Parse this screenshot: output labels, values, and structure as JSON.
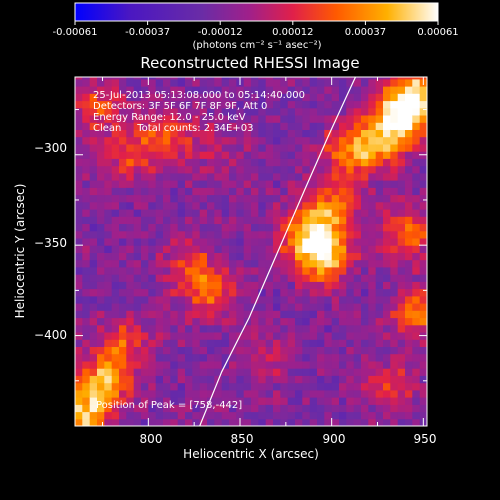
{
  "chart_data": {
    "type": "heatmap",
    "title": "Reconstructed RHESSI Image",
    "xlabel": "Heliocentric X (arcsec)",
    "ylabel": "Heliocentric Y (arcsec)",
    "xlim": [
      760,
      952
    ],
    "ylim": [
      -450,
      -257
    ],
    "x_ticks": [
      800,
      850,
      900,
      950
    ],
    "y_ticks": [
      -300,
      -350,
      -400
    ],
    "x_tick_labels": [
      "800",
      "850",
      "900",
      "950"
    ],
    "y_tick_labels": [
      "−300",
      "−350",
      "−400"
    ],
    "colorbar": {
      "range": [
        -0.00061,
        0.00061
      ],
      "tick_labels": [
        "-0.00061",
        "-0.00037",
        "-0.00012",
        "0.00012",
        "0.00037",
        "0.00061"
      ],
      "unit_label": "(photons cm⁻² s⁻¹ asec⁻²)",
      "colors": [
        "#0000ff",
        "#4a17c2",
        "#6a2ca6",
        "#a0208a",
        "#e0204a",
        "#ff5a00",
        "#ffb000",
        "#ffffff"
      ]
    },
    "annotations": [
      "25-Jul-2013 05:13:08.000 to 05:14:40.000",
      "Detectors: 3F 5F 6F 7F 8F 9F, Att 0",
      "Energy Range: 12.0 - 25.0 keV",
      "Clean     Total counts: 2.34E+03"
    ],
    "peak_label": "Position of Peak = [758,-442]",
    "limb_curve": [
      [
        828,
        -450
      ],
      [
        840,
        -420
      ],
      [
        855,
        -390
      ],
      [
        870,
        -355
      ],
      [
        885,
        -320
      ],
      [
        898,
        -290
      ],
      [
        908,
        -268
      ],
      [
        913,
        -257
      ]
    ],
    "hotspots": [
      {
        "x": 893,
        "y": -358,
        "v": 0.0006
      },
      {
        "x": 885,
        "y": -345,
        "v": 0.00048
      },
      {
        "x": 900,
        "y": -330,
        "v": 0.0004
      },
      {
        "x": 935,
        "y": -280,
        "v": 0.00058
      },
      {
        "x": 945,
        "y": -268,
        "v": 0.00055
      },
      {
        "x": 925,
        "y": -295,
        "v": 0.0004
      },
      {
        "x": 908,
        "y": -300,
        "v": 0.00042
      },
      {
        "x": 940,
        "y": -345,
        "v": 0.0004
      },
      {
        "x": 945,
        "y": -390,
        "v": 0.00038
      },
      {
        "x": 930,
        "y": -430,
        "v": 0.00025
      },
      {
        "x": 762,
        "y": -445,
        "v": 0.00061
      },
      {
        "x": 775,
        "y": -425,
        "v": 0.0005
      },
      {
        "x": 785,
        "y": -405,
        "v": 0.0003
      },
      {
        "x": 832,
        "y": -378,
        "v": 0.00035
      },
      {
        "x": 820,
        "y": -362,
        "v": 0.00028
      },
      {
        "x": 790,
        "y": -300,
        "v": 0.00033
      },
      {
        "x": 812,
        "y": -292,
        "v": 0.0003
      },
      {
        "x": 770,
        "y": -275,
        "v": 0.0003
      },
      {
        "x": 840,
        "y": -300,
        "v": 0.00015
      },
      {
        "x": 862,
        "y": -415,
        "v": 0.0002
      }
    ]
  }
}
